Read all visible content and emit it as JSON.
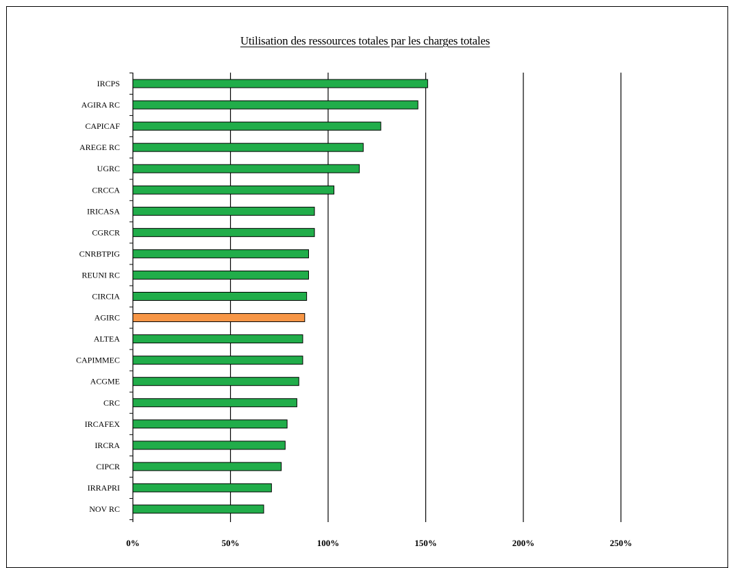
{
  "chart_data": {
    "type": "bar",
    "orientation": "horizontal",
    "title": "Utilisation des ressources totales par les charges totales",
    "xlabel": "",
    "ylabel": "",
    "xlim": [
      0,
      250
    ],
    "x_ticks": [
      0,
      50,
      100,
      150,
      200,
      250
    ],
    "x_tick_labels": [
      "0%",
      "50%",
      "100%",
      "150%",
      "200%",
      "250%"
    ],
    "grid": "vertical",
    "legend": "none",
    "categories": [
      "IRCPS",
      "AGIRA RC",
      "CAPICAF",
      "AREGE RC",
      "UGRC",
      "CRCCA",
      "IRICASA",
      "CGRCR",
      "CNRBTPIG",
      "REUNI RC",
      "CIRCIA",
      "AGIRC",
      "ALTEA",
      "CAPIMMEC",
      "ACGME",
      "CRC",
      "IRCAFEX",
      "IRCRA",
      "CIPCR",
      "IRRAPRI",
      "NOV RC"
    ],
    "values": [
      151,
      146,
      127,
      118,
      116,
      103,
      93,
      93,
      90,
      90,
      89,
      88,
      87,
      87,
      85,
      84,
      79,
      78,
      76,
      71,
      67
    ],
    "highlight_category": "AGIRC",
    "colors": {
      "bar": "#21ad4a",
      "highlight": "#f79646",
      "bar_border": "#000000",
      "grid": "#000000"
    }
  }
}
